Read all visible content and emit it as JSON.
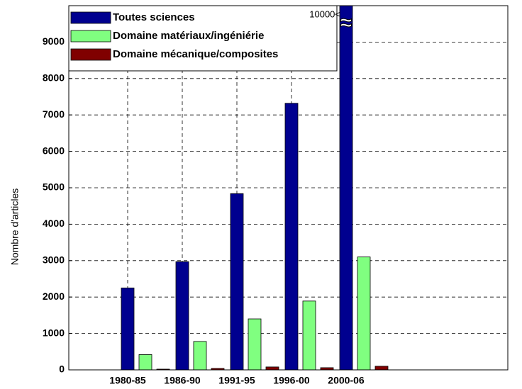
{
  "chart_data": {
    "type": "bar",
    "ylabel": "Nombre d'articles",
    "categories": [
      "1980-85",
      "1986-90",
      "1991-95",
      "1996-00",
      "2000-06"
    ],
    "series": [
      {
        "name": "Toutes sciences",
        "color": "#00008f",
        "values": [
          2250,
          2970,
          4840,
          7320,
          10000
        ]
      },
      {
        "name": "Domaine matériaux/ingéniérie",
        "color": "#80ff80",
        "values": [
          420,
          780,
          1400,
          1890,
          3100
        ]
      },
      {
        "name": "Domaine mécanique/composites",
        "color": "#800000",
        "values": [
          20,
          40,
          80,
          60,
          100
        ]
      }
    ],
    "annotations": [
      "10000<",
      "≈"
    ],
    "ylim": [
      0,
      10000
    ],
    "yticks": [
      0,
      1000,
      2000,
      3000,
      4000,
      5000,
      6000,
      7000,
      8000,
      9000
    ],
    "grid": true,
    "legend": "upper left"
  }
}
